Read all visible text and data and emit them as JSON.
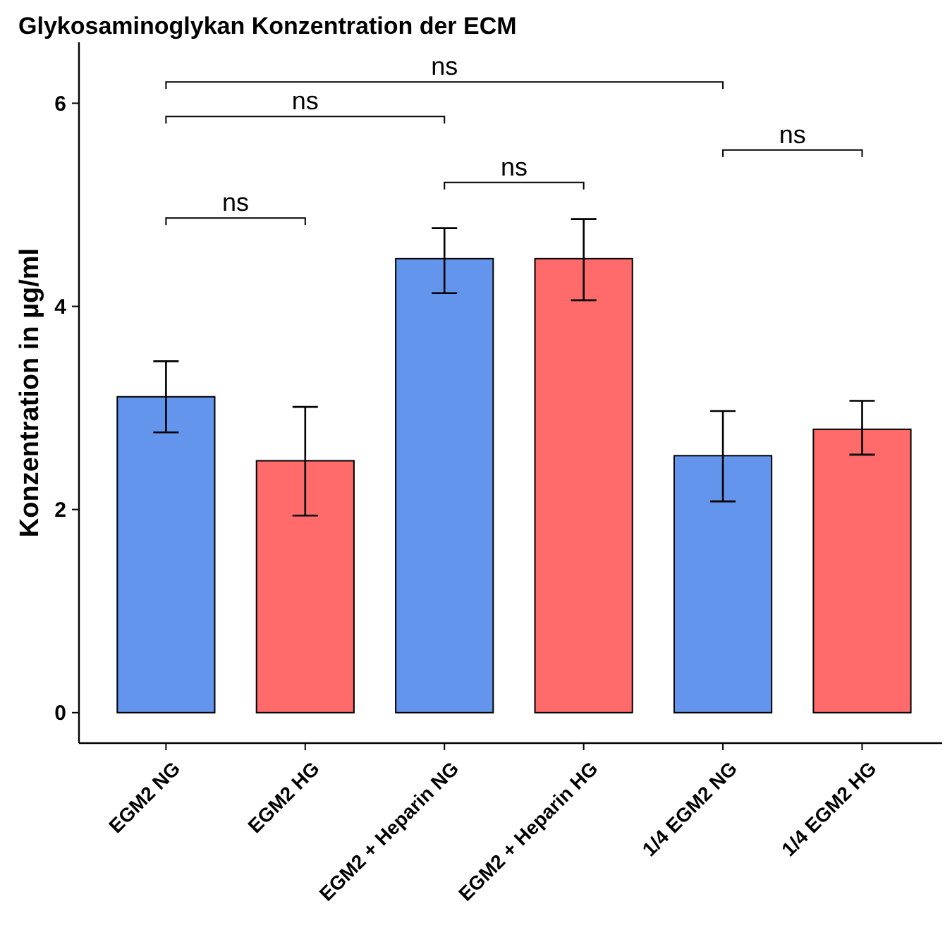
{
  "chart_data": {
    "type": "bar",
    "title": "Glykosaminoglykan Konzentration der ECM",
    "ylabel": "Konzentration in µg/ml",
    "categories": [
      "EGM2 NG",
      "EGM2 HG",
      "EGM2 + Heparin NG",
      "EGM2 + Heparin HG",
      "1/4 EGM2 NG",
      "1/4 EGM2 HG"
    ],
    "values": [
      3.11,
      2.48,
      4.47,
      4.47,
      2.53,
      2.79
    ],
    "colors": [
      "#6495ed",
      "#ff6a6a",
      "#6495ed",
      "#ff6a6a",
      "#6495ed",
      "#ff6a6a"
    ],
    "errors": [
      [
        2.76,
        3.46
      ],
      [
        1.94,
        3.01
      ],
      [
        4.13,
        4.77
      ],
      [
        4.06,
        4.86
      ],
      [
        2.08,
        2.97
      ],
      [
        2.54,
        3.07
      ]
    ],
    "ylim": [
      -0.3,
      6.6
    ],
    "yticks": [
      0,
      2,
      4,
      6
    ],
    "grid": false,
    "annotations": [
      "ns",
      "ns",
      "ns",
      "ns",
      "ns"
    ]
  }
}
